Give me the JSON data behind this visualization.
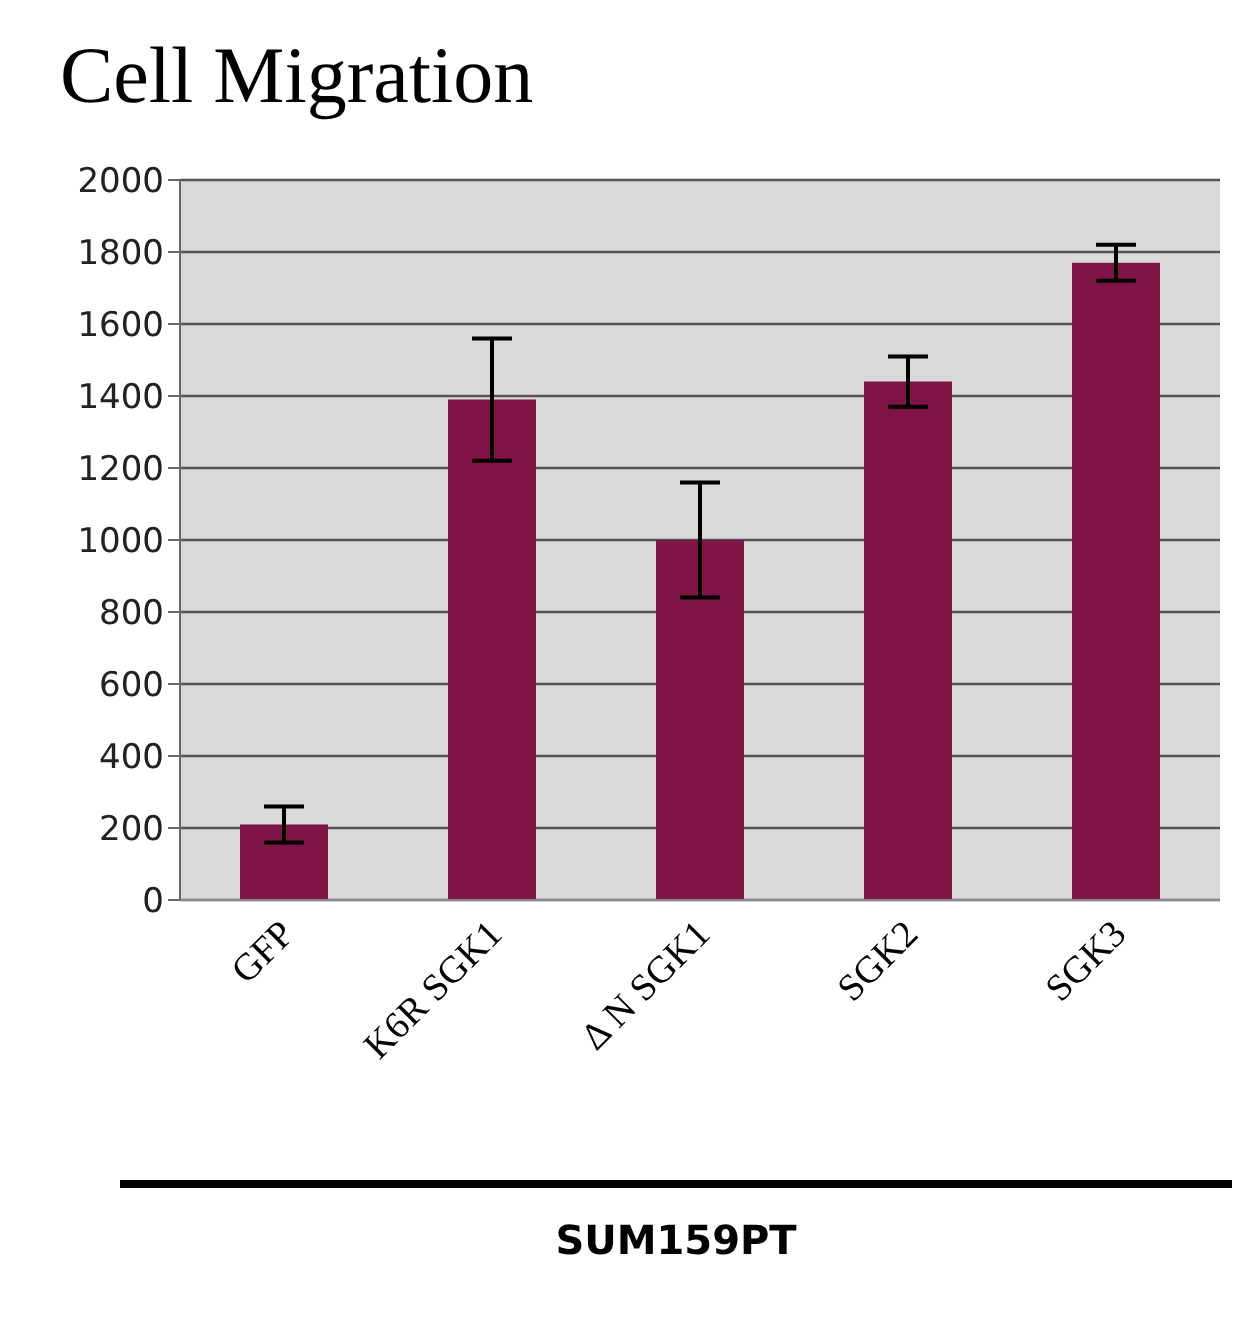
{
  "chart_data": {
    "type": "bar",
    "title": "Cell Migration",
    "xlabel": "SUM159PT",
    "categories": [
      "GFP",
      "K6R SGK1",
      "Δ N SGK1",
      "SGK2",
      "SGK3"
    ],
    "values": [
      210,
      1390,
      1000,
      1440,
      1770
    ],
    "errors": [
      50,
      170,
      160,
      70,
      50
    ],
    "color": "#7f1447",
    "ylim": [
      0,
      2000
    ],
    "yticks": [
      0,
      200,
      400,
      600,
      800,
      1000,
      1200,
      1400,
      1600,
      1800,
      2000
    ],
    "grid": "y"
  }
}
